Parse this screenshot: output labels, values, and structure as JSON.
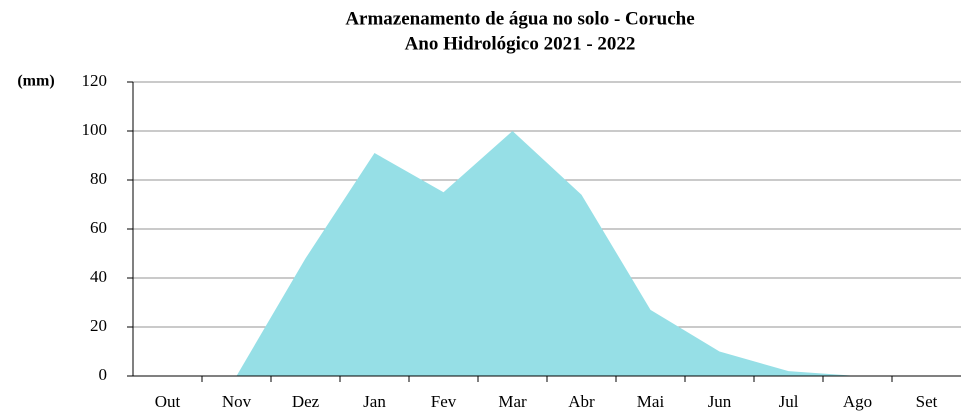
{
  "chart_data": {
    "type": "area",
    "title": "Armazenamento de água no solo - Coruche",
    "subtitle": "Ano Hidrológico 2021 - 2022",
    "y_label": "(mm)",
    "categories": [
      "Out",
      "Nov",
      "Dez",
      "Jan",
      "Fev",
      "Mar",
      "Abr",
      "Mai",
      "Jun",
      "Jul",
      "Ago",
      "Set"
    ],
    "values": [
      0,
      0,
      48,
      91,
      75,
      100,
      74,
      27,
      10,
      2,
      0,
      0
    ],
    "color": "#96dfe6",
    "ylim": [
      0,
      120
    ],
    "yticks": [
      0,
      20,
      40,
      60,
      80,
      100,
      120
    ],
    "grid": true
  }
}
